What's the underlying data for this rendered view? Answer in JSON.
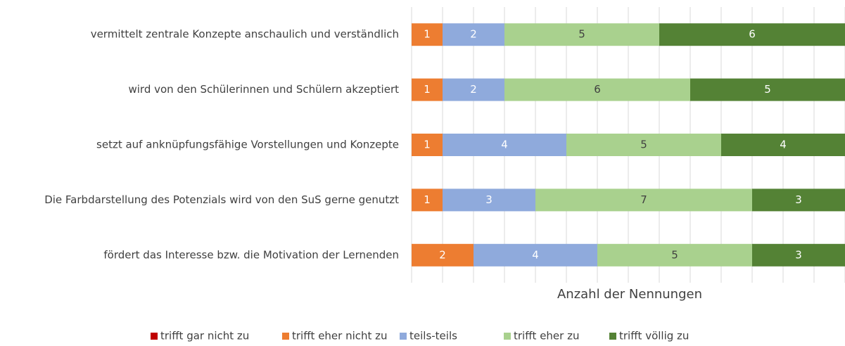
{
  "chart_data": {
    "type": "stacked-barh",
    "categories": [
      "vermittelt zentrale Konzepte anschaulich und verständlich",
      "wird von den Schülerinnen und Schülern akzeptiert",
      "setzt auf anknüpfungsfähige Vorstellungen und Konzepte",
      "Die Farbdarstellung des Potenzials wird von den SuS gerne genutzt",
      "fördert das Interesse bzw. die Motivation der Lernenden"
    ],
    "series": [
      {
        "name": "trifft gar nicht zu",
        "color": "#c00000",
        "label_color": "#ffffff",
        "values": [
          0,
          0,
          0,
          0,
          0
        ]
      },
      {
        "name": "trifft eher nicht zu",
        "color": "#ed7d31",
        "label_color": "#ffffff",
        "values": [
          1,
          1,
          1,
          1,
          2
        ]
      },
      {
        "name": "teils-teils",
        "color": "#8faadc",
        "label_color": "#ffffff",
        "values": [
          2,
          2,
          4,
          3,
          4
        ]
      },
      {
        "name": "trifft eher zu",
        "color": "#a9d18e",
        "label_color": "#404040",
        "values": [
          5,
          6,
          5,
          7,
          5
        ]
      },
      {
        "name": "trifft völlig zu",
        "color": "#548235",
        "label_color": "#ffffff",
        "values": [
          6,
          5,
          4,
          3,
          3
        ]
      }
    ],
    "xlabel": "Anzahl der Nennungen",
    "xlim": [
      0,
      14
    ],
    "xticks": [
      0,
      1,
      2,
      3,
      4,
      5,
      6,
      7,
      8,
      9,
      10,
      11,
      12,
      13,
      14
    ],
    "grid": true,
    "legend": "bottom"
  }
}
